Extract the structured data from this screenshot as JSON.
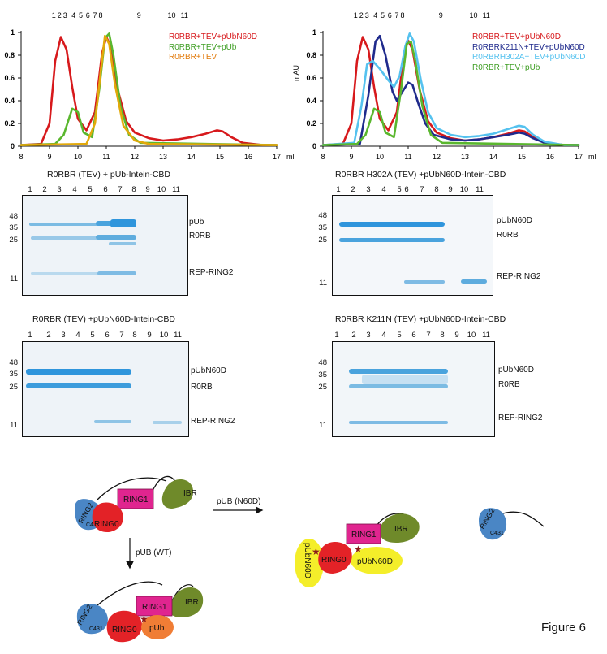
{
  "figure_label": "Figure 6",
  "chart_data": [
    {
      "type": "line",
      "ylabel": "",
      "xunit": "ml",
      "xlim": [
        8,
        17
      ],
      "ylim": [
        0,
        1
      ],
      "xticks": [
        "8",
        "9",
        "10",
        "11",
        "12",
        "13",
        "14",
        "15",
        "16",
        "17"
      ],
      "yticks": [
        "0",
        "0.2",
        "0.4",
        "0.6",
        "0.8",
        "1"
      ],
      "fractions": [
        {
          "label": "1",
          "x": 9.15
        },
        {
          "label": "2",
          "x": 9.35
        },
        {
          "label": "3",
          "x": 9.55
        },
        {
          "label": "4",
          "x": 9.85
        },
        {
          "label": "5",
          "x": 10.1
        },
        {
          "label": "6",
          "x": 10.35
        },
        {
          "label": "7",
          "x": 10.6
        },
        {
          "label": "8",
          "x": 10.8
        },
        {
          "label": "9",
          "x": 12.15
        },
        {
          "label": "10",
          "x": 13.3
        },
        {
          "label": "11",
          "x": 13.75
        }
      ],
      "series": [
        {
          "name": "R0RBR+TEV+pUbN60D",
          "color": "#d7191c",
          "points": [
            [
              8,
              0.01
            ],
            [
              8.7,
              0.02
            ],
            [
              9.0,
              0.2
            ],
            [
              9.2,
              0.75
            ],
            [
              9.4,
              0.96
            ],
            [
              9.6,
              0.85
            ],
            [
              9.8,
              0.52
            ],
            [
              10.0,
              0.24
            ],
            [
              10.3,
              0.14
            ],
            [
              10.6,
              0.3
            ],
            [
              10.85,
              0.82
            ],
            [
              11.0,
              0.96
            ],
            [
              11.15,
              0.88
            ],
            [
              11.4,
              0.5
            ],
            [
              11.7,
              0.22
            ],
            [
              12.0,
              0.12
            ],
            [
              12.5,
              0.07
            ],
            [
              13.0,
              0.05
            ],
            [
              13.5,
              0.06
            ],
            [
              14.0,
              0.08
            ],
            [
              14.5,
              0.11
            ],
            [
              14.9,
              0.14
            ],
            [
              15.1,
              0.13
            ],
            [
              15.4,
              0.08
            ],
            [
              15.8,
              0.03
            ],
            [
              16.5,
              0.01
            ],
            [
              17,
              0.01
            ]
          ]
        },
        {
          "name": "R0RBR+TEV+pUb",
          "color": "#5ab72e",
          "points": [
            [
              8,
              0.01
            ],
            [
              9.2,
              0.02
            ],
            [
              9.5,
              0.1
            ],
            [
              9.8,
              0.33
            ],
            [
              10.0,
              0.3
            ],
            [
              10.2,
              0.12
            ],
            [
              10.5,
              0.08
            ],
            [
              10.75,
              0.5
            ],
            [
              10.95,
              0.95
            ],
            [
              11.1,
              0.99
            ],
            [
              11.25,
              0.8
            ],
            [
              11.5,
              0.35
            ],
            [
              11.8,
              0.1
            ],
            [
              12.2,
              0.03
            ],
            [
              17,
              0.01
            ]
          ]
        },
        {
          "name": "R0RBR+TEV",
          "color": "#e2a90b",
          "points": [
            [
              8,
              0.01
            ],
            [
              10.3,
              0.02
            ],
            [
              10.6,
              0.2
            ],
            [
              10.8,
              0.65
            ],
            [
              10.95,
              0.97
            ],
            [
              11.1,
              0.9
            ],
            [
              11.3,
              0.55
            ],
            [
              11.6,
              0.18
            ],
            [
              12.0,
              0.05
            ],
            [
              12.5,
              0.02
            ],
            [
              17,
              0.01
            ]
          ]
        }
      ]
    },
    {
      "type": "line",
      "ylabel": "mAU",
      "xunit": "ml",
      "xlim": [
        8,
        17
      ],
      "ylim": [
        0,
        1
      ],
      "xticks": [
        "8",
        "9",
        "10",
        "11",
        "12",
        "13",
        "14",
        "15",
        "16",
        "17"
      ],
      "yticks": [
        "0",
        "0.2",
        "0.4",
        "0.6",
        "0.8",
        "1"
      ],
      "fractions": [
        {
          "label": "1",
          "x": 9.15
        },
        {
          "label": "2",
          "x": 9.35
        },
        {
          "label": "3",
          "x": 9.55
        },
        {
          "label": "4",
          "x": 9.85
        },
        {
          "label": "5",
          "x": 10.1
        },
        {
          "label": "6",
          "x": 10.35
        },
        {
          "label": "7",
          "x": 10.6
        },
        {
          "label": "8",
          "x": 10.8
        },
        {
          "label": "9",
          "x": 12.15
        },
        {
          "label": "10",
          "x": 13.3
        },
        {
          "label": "11",
          "x": 13.75
        }
      ],
      "series": [
        {
          "name": "R0RBR+TEV+pUbN60D",
          "color": "#d7191c",
          "points": [
            [
              8,
              0.01
            ],
            [
              8.7,
              0.02
            ],
            [
              9.0,
              0.2
            ],
            [
              9.2,
              0.75
            ],
            [
              9.4,
              0.96
            ],
            [
              9.6,
              0.85
            ],
            [
              9.8,
              0.52
            ],
            [
              10.0,
              0.24
            ],
            [
              10.3,
              0.14
            ],
            [
              10.6,
              0.3
            ],
            [
              10.85,
              0.82
            ],
            [
              11.0,
              0.93
            ],
            [
              11.15,
              0.85
            ],
            [
              11.4,
              0.5
            ],
            [
              11.7,
              0.22
            ],
            [
              12.0,
              0.12
            ],
            [
              12.5,
              0.07
            ],
            [
              13.0,
              0.05
            ],
            [
              13.5,
              0.06
            ],
            [
              14.0,
              0.08
            ],
            [
              14.5,
              0.11
            ],
            [
              14.9,
              0.14
            ],
            [
              15.1,
              0.13
            ],
            [
              15.4,
              0.08
            ],
            [
              15.8,
              0.03
            ],
            [
              16.5,
              0.01
            ],
            [
              17,
              0.01
            ]
          ]
        },
        {
          "name": "R0RBRK211N+TEV+pUbN60D",
          "color": "#1f2a8c",
          "points": [
            [
              8,
              0.01
            ],
            [
              9.3,
              0.02
            ],
            [
              9.6,
              0.45
            ],
            [
              9.85,
              0.92
            ],
            [
              10.0,
              0.97
            ],
            [
              10.2,
              0.8
            ],
            [
              10.45,
              0.48
            ],
            [
              10.6,
              0.4
            ],
            [
              10.8,
              0.48
            ],
            [
              11.0,
              0.56
            ],
            [
              11.15,
              0.54
            ],
            [
              11.35,
              0.38
            ],
            [
              11.6,
              0.2
            ],
            [
              11.9,
              0.1
            ],
            [
              12.5,
              0.06
            ],
            [
              13.0,
              0.05
            ],
            [
              13.5,
              0.06
            ],
            [
              14.0,
              0.08
            ],
            [
              14.5,
              0.1
            ],
            [
              14.9,
              0.12
            ],
            [
              15.1,
              0.11
            ],
            [
              15.4,
              0.07
            ],
            [
              15.8,
              0.03
            ],
            [
              16.5,
              0.01
            ],
            [
              17,
              0.01
            ]
          ]
        },
        {
          "name": "R0RBRH302A+TEV+pUbN60D",
          "color": "#55c2ef",
          "points": [
            [
              8,
              0.01
            ],
            [
              9.1,
              0.03
            ],
            [
              9.35,
              0.35
            ],
            [
              9.55,
              0.72
            ],
            [
              9.75,
              0.75
            ],
            [
              10.0,
              0.68
            ],
            [
              10.3,
              0.58
            ],
            [
              10.5,
              0.52
            ],
            [
              10.7,
              0.62
            ],
            [
              10.9,
              0.88
            ],
            [
              11.05,
              0.99
            ],
            [
              11.2,
              0.92
            ],
            [
              11.45,
              0.58
            ],
            [
              11.7,
              0.3
            ],
            [
              12.0,
              0.16
            ],
            [
              12.5,
              0.1
            ],
            [
              13.0,
              0.08
            ],
            [
              13.5,
              0.09
            ],
            [
              14.0,
              0.11
            ],
            [
              14.5,
              0.15
            ],
            [
              14.9,
              0.18
            ],
            [
              15.1,
              0.17
            ],
            [
              15.4,
              0.1
            ],
            [
              15.8,
              0.04
            ],
            [
              16.5,
              0.01
            ],
            [
              17,
              0.01
            ]
          ]
        },
        {
          "name": "R0RBR+TEV+pUb",
          "color": "#5ab72e",
          "points": [
            [
              8,
              0.01
            ],
            [
              9.2,
              0.02
            ],
            [
              9.5,
              0.1
            ],
            [
              9.8,
              0.33
            ],
            [
              10.0,
              0.3
            ],
            [
              10.2,
              0.12
            ],
            [
              10.5,
              0.08
            ],
            [
              10.75,
              0.5
            ],
            [
              10.95,
              0.9
            ],
            [
              11.1,
              0.92
            ],
            [
              11.25,
              0.75
            ],
            [
              11.5,
              0.35
            ],
            [
              11.8,
              0.1
            ],
            [
              12.2,
              0.03
            ],
            [
              17,
              0.01
            ]
          ]
        }
      ]
    }
  ],
  "gels": [
    {
      "title": "R0RBR (TEV) + pUb-Intein-CBD",
      "title_color": "#1e7a2e",
      "lanes": [
        "1",
        "2",
        "3",
        "4",
        "5",
        "6",
        "7",
        "8",
        "9",
        "10",
        "11"
      ],
      "mw": [
        "48",
        "35",
        "25",
        "11"
      ],
      "bands": [
        "pUb",
        "R0RB",
        "REP-RING2"
      ]
    },
    {
      "title": "R0RBR H302A (TEV) +pUbN60D-Intein-CBD",
      "title_color": "#4fbbe8",
      "lanes": [
        "1",
        "2",
        "3",
        "4",
        "5",
        "6",
        "7",
        "8",
        "9",
        "10",
        "11"
      ],
      "mw": [
        "48",
        "35",
        "25",
        "11"
      ],
      "bands": [
        "pUbN60D",
        "R0RB",
        "REP-RING2"
      ]
    },
    {
      "title": "R0RBR (TEV) +pUbN60D-Intein-CBD",
      "title_color": "#c0141f",
      "lanes": [
        "1",
        "2",
        "3",
        "4",
        "5",
        "6",
        "7",
        "8",
        "9",
        "10",
        "11"
      ],
      "mw": [
        "48",
        "35",
        "25",
        "11"
      ],
      "bands": [
        "pUbN60D",
        "R0RB",
        "REP-RING2"
      ]
    },
    {
      "title": "R0RBR K211N (TEV) +pUbN60D-Intein-CBD",
      "title_color": "#1f2a8c",
      "lanes": [
        "1",
        "2",
        "3",
        "4",
        "5",
        "6",
        "7",
        "8",
        "9",
        "10",
        "11"
      ],
      "mw": [
        "48",
        "35",
        "25",
        "11"
      ],
      "bands": [
        "pUbN60D",
        "R0RB",
        "REP-RING2"
      ]
    }
  ],
  "diagram": {
    "arrow_right_label": "pUB (N60D)",
    "arrow_down_label": "pUB (WT)",
    "ring2": "RING2",
    "c431": "C431",
    "ring1": "RING1",
    "ring0": "RING0",
    "ibr": "IBR",
    "pub": "pUb",
    "pubn60d": "pUbN60D",
    "colors": {
      "ring2": "#4a86c5",
      "ring1": "#e0258f",
      "ring0": "#e32227",
      "ibr": "#6f8a2a",
      "pub": "#f07d35",
      "pubn60d": "#f4ee2a"
    }
  }
}
